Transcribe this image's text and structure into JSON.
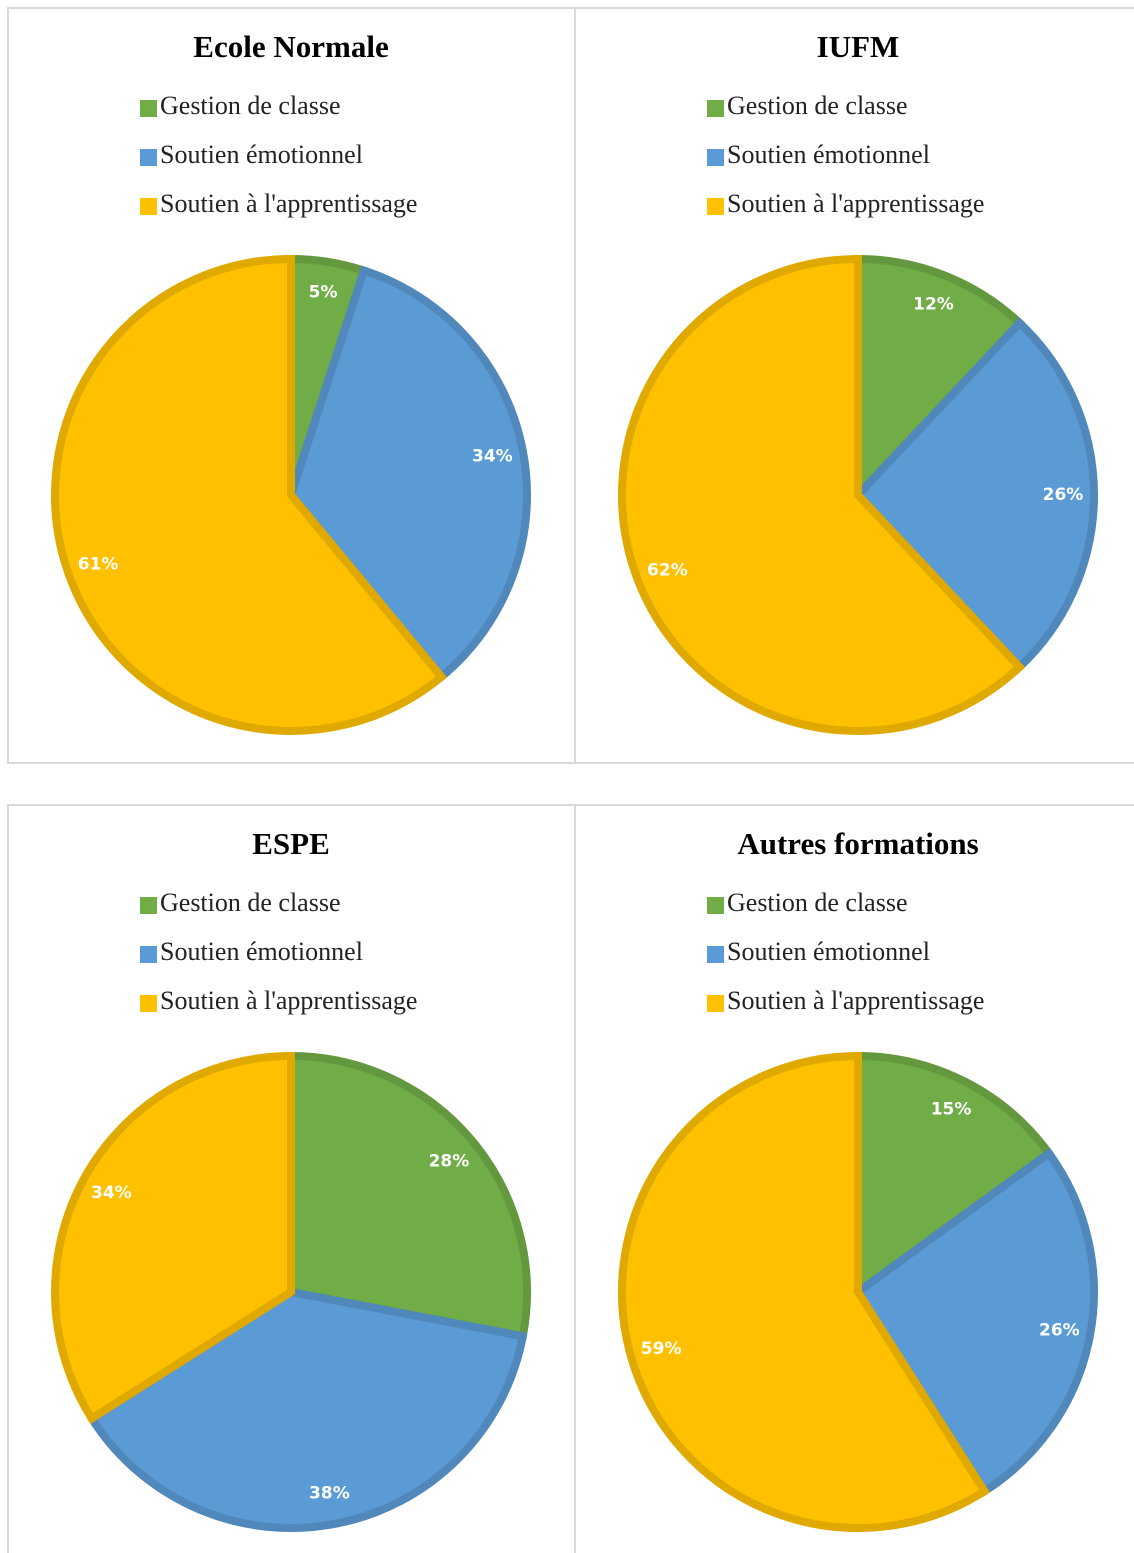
{
  "chart_data": [
    {
      "type": "pie",
      "title": "Ecole Normale",
      "categories": [
        "Gestion de classe",
        "Soutien émotionnel",
        "Soutien à l'apprentissage"
      ],
      "values": [
        5,
        34,
        61
      ],
      "value_labels": [
        "5%",
        "34%",
        "61%"
      ],
      "colors": [
        "#70ad47",
        "#5b9bd5",
        "#ffc000"
      ]
    },
    {
      "type": "pie",
      "title": "IUFM",
      "categories": [
        "Gestion de classe",
        "Soutien émotionnel",
        "Soutien à l'apprentissage"
      ],
      "values": [
        12,
        26,
        62
      ],
      "value_labels": [
        "12%",
        "26%",
        "62%"
      ],
      "colors": [
        "#70ad47",
        "#5b9bd5",
        "#ffc000"
      ]
    },
    {
      "type": "pie",
      "title": "ESPE",
      "categories": [
        "Gestion de classe",
        "Soutien émotionnel",
        "Soutien à l'apprentissage"
      ],
      "values": [
        28,
        38,
        34
      ],
      "value_labels": [
        "28%",
        "38%",
        "34%"
      ],
      "colors": [
        "#70ad47",
        "#5b9bd5",
        "#ffc000"
      ]
    },
    {
      "type": "pie",
      "title": "Autres formations",
      "categories": [
        "Gestion de classe",
        "Soutien émotionnel",
        "Soutien à l'apprentissage"
      ],
      "values": [
        15,
        26,
        59
      ],
      "value_labels": [
        "15%",
        "26%",
        "59%"
      ],
      "colors": [
        "#70ad47",
        "#5b9bd5",
        "#ffc000"
      ]
    }
  ]
}
